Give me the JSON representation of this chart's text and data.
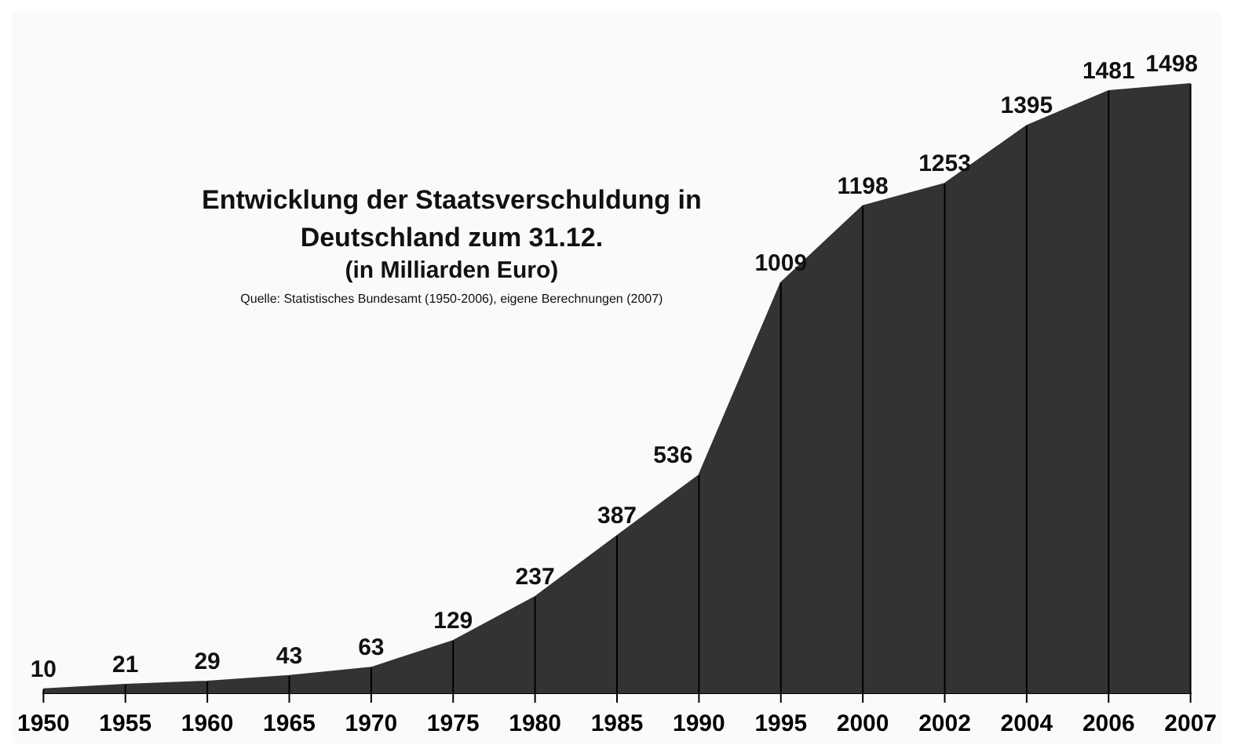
{
  "chart_data": {
    "type": "area",
    "title": "Entwicklung der Staatsverschuldung in Deutschland zum 31.12.",
    "subtitle": "(in Milliarden Euro)",
    "annotations": [
      "Quelle: Statistisches Bundesamt (1950-2006), eigene Berechnungen (2007)"
    ],
    "categories": [
      "1950",
      "1955",
      "1960",
      "1965",
      "1970",
      "1975",
      "1980",
      "1985",
      "1990",
      "1995",
      "2000",
      "2002",
      "2004",
      "2006",
      "2007"
    ],
    "values": [
      10,
      21,
      29,
      43,
      63,
      129,
      237,
      387,
      536,
      1009,
      1198,
      1253,
      1395,
      1481,
      1498
    ],
    "color": "#333333",
    "data_labels": true,
    "grid": "x",
    "legend": false
  }
}
